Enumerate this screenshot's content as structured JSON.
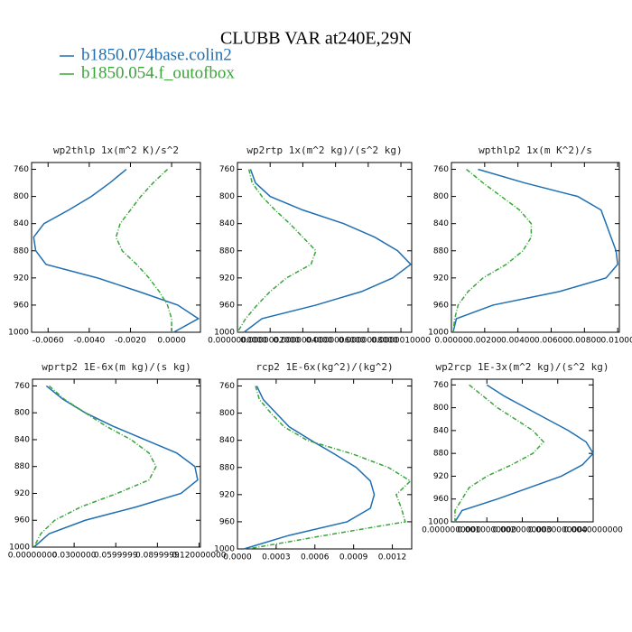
{
  "title": "CLUBB VAR at240E,29N",
  "legend": [
    {
      "name": "b1850.074base.colin2",
      "color": "#1f6fb2"
    },
    {
      "name": "b1850.054.f_outofbox",
      "color": "#3aa53a"
    }
  ],
  "chart_data": [
    {
      "type": "line",
      "title": "wp2thlp  1x(m^2 K)/s^2",
      "levels": [
        760,
        780,
        800,
        820,
        840,
        860,
        880,
        900,
        920,
        940,
        960,
        980,
        1000
      ],
      "series": [
        {
          "values": [
            -0.0022,
            -0.003,
            -0.0039,
            -0.005,
            -0.0062,
            -0.0067,
            -0.0066,
            -0.0061,
            -0.0036,
            -0.0016,
            0.0003,
            0.0013,
            0.0001
          ]
        },
        {
          "values": [
            -0.0002,
            -0.0009,
            -0.0015,
            -0.002,
            -0.0025,
            -0.0027,
            -0.0024,
            -0.0017,
            -0.0011,
            -0.0006,
            -0.0002,
            0.0,
            0.0
          ]
        }
      ],
      "xlim": [
        -0.0068,
        0.0014
      ],
      "xticks": [
        {
          "value": -0.006,
          "label": "-0.0060"
        },
        {
          "value": -0.004,
          "label": "-0.0040"
        },
        {
          "value": -0.002,
          "label": "-0.0020"
        },
        {
          "value": 0,
          "label": "0.0000"
        }
      ],
      "ylim": [
        1000,
        750
      ],
      "yticks": [
        760,
        800,
        840,
        880,
        920,
        960,
        1000
      ]
    },
    {
      "type": "line",
      "title": "wp2rtp  1x(m^2 kg)/(s^2 kg)",
      "levels": [
        760,
        780,
        800,
        820,
        840,
        860,
        880,
        900,
        920,
        940,
        960,
        980,
        1000
      ],
      "series": [
        {
          "values": [
            8e-08,
            1.1e-07,
            2e-07,
            4e-07,
            6.5e-07,
            8.4e-07,
            9.8e-07,
            1.06e-06,
            9.5e-07,
            7.6e-07,
            4.8e-07,
            1.5e-07,
            4e-08
          ]
        },
        {
          "values": [
            7e-08,
            9e-08,
            1.5e-07,
            2.3e-07,
            3.2e-07,
            4e-07,
            4.8e-07,
            4.5e-07,
            3e-07,
            2e-07,
            1.2e-07,
            5e-08,
            0.0
          ]
        }
      ],
      "xlim": [
        0,
        1.066e-06
      ],
      "xticks": [
        {
          "value": 0,
          "label": "0.0000000000"
        },
        {
          "value": 2e-07,
          "label": "0.0000002000"
        },
        {
          "value": 4e-07,
          "label": "0.0000004000"
        },
        {
          "value": 6e-07,
          "label": "0.0000006000"
        },
        {
          "value": 8e-07,
          "label": "0.0000008000"
        },
        {
          "value": 1e-06,
          "label": "0.0000010000"
        }
      ],
      "ylim": [
        1000,
        750
      ],
      "yticks": [
        760,
        800,
        840,
        880,
        920,
        960,
        1000
      ]
    },
    {
      "type": "line",
      "title": "wpthlp2  1x(m K^2)/s",
      "levels": [
        760,
        780,
        800,
        820,
        840,
        860,
        880,
        900,
        920,
        940,
        960,
        980,
        1000
      ],
      "series": [
        {
          "values": [
            0.0016,
            0.0044,
            0.0076,
            0.009,
            0.0093,
            0.0096,
            0.0099,
            0.01,
            0.0093,
            0.0065,
            0.0025,
            0.0003,
            0.0001
          ]
        },
        {
          "values": [
            0.0009,
            0.0019,
            0.003,
            0.0041,
            0.0048,
            0.0048,
            0.0043,
            0.0033,
            0.0019,
            0.001,
            0.0004,
            0.0002,
            0.0001
          ]
        }
      ],
      "xlim": [
        0,
        0.0101
      ],
      "xticks": [
        {
          "value": 0,
          "label": "0.00000"
        },
        {
          "value": 0.002,
          "label": "0.00200"
        },
        {
          "value": 0.004,
          "label": "0.00400"
        },
        {
          "value": 0.006,
          "label": "0.00600"
        },
        {
          "value": 0.008,
          "label": "0.00800"
        },
        {
          "value": 0.01,
          "label": "0.01000"
        }
      ],
      "ylim": [
        1000,
        750
      ],
      "yticks": [
        760,
        800,
        840,
        880,
        920,
        960,
        1000
      ]
    },
    {
      "type": "line",
      "title": "wprtp2  1E-6x(m kg)/(s kg)",
      "levels": [
        760,
        780,
        800,
        820,
        840,
        860,
        880,
        900,
        920,
        940,
        960,
        980,
        1000
      ],
      "series": [
        {
          "values": [
            0.01,
            0.022,
            0.038,
            0.058,
            0.081,
            0.104,
            0.117,
            0.119,
            0.107,
            0.075,
            0.038,
            0.012,
            0.001
          ]
        },
        {
          "values": [
            0.012,
            0.023,
            0.038,
            0.053,
            0.071,
            0.084,
            0.089,
            0.084,
            0.061,
            0.035,
            0.016,
            0.006,
            0.001
          ]
        }
      ],
      "xlim": [
        0,
        0.121
      ],
      "xticks": [
        {
          "value": 0,
          "label": "0.00000000"
        },
        {
          "value": 0.03,
          "label": "0.0300000"
        },
        {
          "value": 0.06,
          "label": "0.0599999"
        },
        {
          "value": 0.09,
          "label": "0.0899999"
        },
        {
          "value": 0.12,
          "label": "0.120000000"
        }
      ],
      "ylim": [
        1000,
        750
      ],
      "yticks": [
        760,
        800,
        840,
        880,
        920,
        960,
        1000
      ]
    },
    {
      "type": "line",
      "title": "rcp2  1E-6x(kg^2)/(kg^2)",
      "levels": [
        760,
        780,
        800,
        820,
        840,
        860,
        880,
        900,
        920,
        940,
        960,
        980,
        1000
      ],
      "series": [
        {
          "values": [
            0.00015,
            0.0002,
            0.0003,
            0.0004,
            0.00057,
            0.00075,
            0.00092,
            0.00103,
            0.00106,
            0.00103,
            0.00085,
            0.0004,
            5e-05
          ]
        },
        {
          "values": [
            0.00014,
            0.00017,
            0.00026,
            0.00036,
            0.00054,
            0.00089,
            0.00117,
            0.00134,
            0.00123,
            0.00127,
            0.0013,
            0.00068,
            8e-05
          ]
        }
      ],
      "xlim": [
        0,
        0.00135
      ],
      "xticks": [
        {
          "value": 0,
          "label": "0.0000"
        },
        {
          "value": 0.0003,
          "label": "0.0003"
        },
        {
          "value": 0.0006,
          "label": "0.0006"
        },
        {
          "value": 0.0009,
          "label": "0.0009"
        },
        {
          "value": 0.0012,
          "label": "0.0012"
        }
      ],
      "ylim": [
        1000,
        750
      ],
      "yticks": [
        760,
        800,
        840,
        880,
        920,
        960,
        1000
      ]
    },
    {
      "type": "line",
      "title": "wp2rcp  1E-3x(m^2 kg)/(s^2 kg)",
      "levels": [
        760,
        780,
        800,
        820,
        840,
        860,
        880,
        900,
        920,
        940,
        960,
        980,
        1000
      ],
      "series": [
        {
          "values": [
            0.001,
            0.0015,
            0.0021,
            0.0027,
            0.0033,
            0.0038,
            0.004,
            0.0037,
            0.0031,
            0.0022,
            0.0013,
            0.0003,
            0.0001
          ]
        },
        {
          "values": [
            0.0005,
            0.0009,
            0.0013,
            0.0018,
            0.0023,
            0.0026,
            0.0023,
            0.0017,
            0.001,
            0.0005,
            0.0003,
            0.0001,
            0.0001
          ]
        }
      ],
      "xlim": [
        0,
        0.004
      ],
      "xticks": [
        {
          "value": 0,
          "label": "0.0000000000"
        },
        {
          "value": 0.001,
          "label": "0.0010000000"
        },
        {
          "value": 0.002,
          "label": "0.0020000000"
        },
        {
          "value": 0.003,
          "label": "0.0030000000"
        },
        {
          "value": 0.004,
          "label": "0.0040000000"
        }
      ],
      "ylim": [
        1000,
        750
      ],
      "yticks": [
        760,
        800,
        840,
        880,
        920,
        960,
        1000
      ]
    }
  ]
}
